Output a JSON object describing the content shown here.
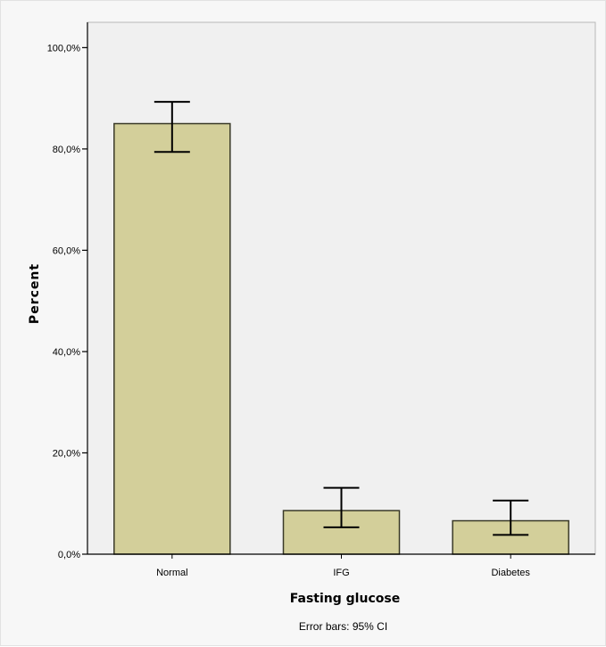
{
  "chart_data": {
    "type": "bar",
    "categories": [
      "Normal",
      "IFG",
      "Diabetes"
    ],
    "values": [
      85.0,
      8.6,
      6.6
    ],
    "error_bars": {
      "lower": [
        79.4,
        5.3,
        3.8
      ],
      "upper": [
        89.3,
        13.1,
        10.6
      ]
    },
    "xlabel": "Fasting glucose",
    "ylabel": "Percent",
    "ylim": [
      0,
      105
    ],
    "yticks": [
      0,
      20,
      40,
      60,
      80,
      100
    ],
    "ytick_labels": [
      "0,0%",
      "20,0%",
      "40,0%",
      "60,0%",
      "80,0%",
      "100,0%"
    ],
    "footnote": "Error bars: 95% CI",
    "grid": false,
    "colors": {
      "bar_fill": "#d3cf9a",
      "bar_stroke": "#3a3a28",
      "plot_background": "#f0f0f0",
      "axis": "#000000",
      "error_bar": "#000000"
    }
  }
}
